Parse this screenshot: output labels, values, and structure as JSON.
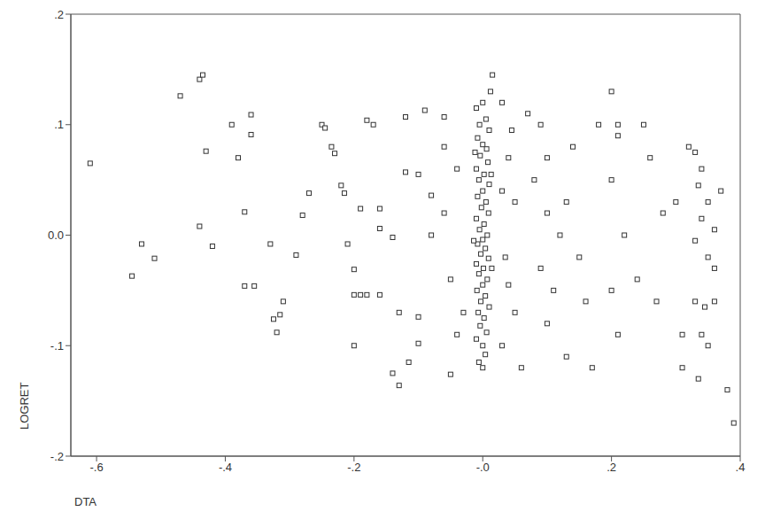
{
  "chart_data": {
    "type": "scatter",
    "x_label": "DTA",
    "y_label": "LOGRET",
    "color": "#333333",
    "marker": "square",
    "grid": false,
    "xlim": [
      -0.64,
      0.4
    ],
    "ylim": [
      -0.2,
      0.2
    ],
    "xticks": [
      {
        "value": -0.6,
        "label": "-.6"
      },
      {
        "value": -0.4,
        "label": "-.4"
      },
      {
        "value": -0.2,
        "label": "-.2"
      },
      {
        "value": 0,
        "label": "-.0"
      },
      {
        "value": 0.2,
        "label": ".2"
      },
      {
        "value": 0.4,
        "label": ".4"
      }
    ],
    "yticks": [
      {
        "value": -0.2,
        "label": "-.2"
      },
      {
        "value": -0.1,
        "label": "-.1"
      },
      {
        "value": 0,
        "label": "0.0"
      },
      {
        "value": 0.1,
        "label": ".1"
      },
      {
        "value": 0.2,
        "label": ".2"
      }
    ],
    "x": [
      -0.61,
      -0.53,
      -0.545,
      -0.51,
      -0.47,
      -0.44,
      -0.435,
      -0.43,
      -0.39,
      -0.36,
      -0.36,
      -0.38,
      -0.44,
      -0.42,
      -0.37,
      -0.37,
      -0.355,
      -0.33,
      -0.31,
      -0.315,
      -0.325,
      -0.32,
      -0.29,
      -0.28,
      -0.27,
      -0.25,
      -0.245,
      -0.23,
      -0.235,
      -0.22,
      -0.215,
      -0.21,
      -0.2,
      -0.2,
      -0.19,
      -0.2,
      -0.18,
      -0.17,
      -0.19,
      -0.16,
      -0.16,
      -0.14,
      -0.18,
      -0.16,
      -0.12,
      -0.09,
      -0.06,
      -0.12,
      -0.1,
      -0.08,
      -0.13,
      -0.115,
      -0.1,
      -0.1,
      -0.05,
      -0.13,
      -0.14,
      -0.08,
      -0.06,
      -0.04,
      -0.05,
      -0.04,
      -0.06,
      -0.03,
      -0.01,
      0,
      0.005,
      -0.005,
      0.01,
      -0.008,
      0,
      0.006,
      -0.004,
      0.008,
      -0.01,
      0.002,
      -0.006,
      0.01,
      0,
      -0.008,
      0.005,
      -0.002,
      0.009,
      -0.01,
      0.002,
      -0.005,
      0.007,
      0,
      -0.008,
      0.004,
      -0.003,
      0.009,
      -0.01,
      0.001,
      -0.006,
      0.007,
      0,
      -0.009,
      0.004,
      -0.003,
      0.01,
      -0.007,
      0.002,
      -0.004,
      0.006,
      -0.01,
      0,
      0.004,
      -0.006,
      0,
      0.012,
      0.015,
      -0.012,
      0.014,
      -0.014,
      0.013,
      0.03,
      0.045,
      0.04,
      0.03,
      0.05,
      0.035,
      0.04,
      0.05,
      0.03,
      0.06,
      0.07,
      0.09,
      0.1,
      0.08,
      0.1,
      0.12,
      0.09,
      0.11,
      0.1,
      0.13,
      0.14,
      0.13,
      0.15,
      0.16,
      0.17,
      0.18,
      0.2,
      0.21,
      0.2,
      0.21,
      0.22,
      0.2,
      0.21,
      0.24,
      0.25,
      0.26,
      0.28,
      0.27,
      0.3,
      0.31,
      0.32,
      0.33,
      0.34,
      0.335,
      0.35,
      0.34,
      0.36,
      0.33,
      0.35,
      0.36,
      0.33,
      0.345,
      0.36,
      0.34,
      0.35,
      0.31,
      0.335,
      0.38,
      0.39,
      0.37
    ],
    "values": [
      0.065,
      -0.008,
      -0.037,
      -0.021,
      0.126,
      0.141,
      0.145,
      0.076,
      0.1,
      0.109,
      0.091,
      0.07,
      0.008,
      -0.01,
      0.021,
      -0.046,
      -0.046,
      -0.008,
      -0.06,
      -0.072,
      -0.076,
      -0.088,
      -0.018,
      0.018,
      0.038,
      0.1,
      0.097,
      0.074,
      0.08,
      0.045,
      0.038,
      -0.008,
      -0.031,
      -0.054,
      -0.054,
      -0.1,
      0.104,
      0.1,
      0.024,
      0.024,
      0.006,
      -0.002,
      -0.054,
      -0.054,
      0.107,
      0.113,
      0.107,
      0.057,
      0.055,
      0.036,
      -0.07,
      -0.115,
      -0.074,
      -0.098,
      -0.126,
      -0.136,
      -0.125,
      0,
      0.02,
      0.06,
      -0.04,
      -0.09,
      0.08,
      -0.07,
      0.115,
      0.12,
      0.105,
      0.1,
      0.095,
      0.088,
      0.082,
      0.078,
      0.072,
      0.066,
      0.06,
      0.055,
      0.05,
      0.046,
      0.04,
      0.035,
      0.03,
      0.025,
      0.02,
      0.015,
      0.01,
      0.005,
      0,
      -0.004,
      -0.008,
      -0.012,
      -0.017,
      -0.021,
      -0.026,
      -0.03,
      -0.035,
      -0.04,
      -0.045,
      -0.05,
      -0.055,
      -0.06,
      -0.065,
      -0.07,
      -0.075,
      -0.082,
      -0.088,
      -0.094,
      -0.1,
      -0.108,
      -0.115,
      -0.12,
      0.13,
      0.145,
      0.075,
      -0.03,
      -0.005,
      0.055,
      0.12,
      0.095,
      0.07,
      0.04,
      0.03,
      -0.02,
      -0.045,
      -0.07,
      -0.1,
      -0.12,
      0.11,
      0.1,
      0.07,
      0.05,
      0.02,
      0,
      -0.03,
      -0.05,
      -0.08,
      -0.11,
      0.08,
      0.03,
      -0.02,
      -0.06,
      -0.12,
      0.1,
      0.13,
      0.1,
      0.05,
      0.09,
      0,
      -0.05,
      -0.09,
      -0.04,
      0.1,
      0.07,
      0.02,
      -0.06,
      0.03,
      -0.09,
      0.08,
      0.075,
      0.06,
      0.045,
      0.03,
      0.015,
      0.005,
      -0.005,
      -0.02,
      -0.03,
      -0.06,
      -0.065,
      -0.06,
      -0.09,
      -0.1,
      -0.12,
      -0.13,
      -0.14,
      -0.17,
      0.04
    ]
  }
}
